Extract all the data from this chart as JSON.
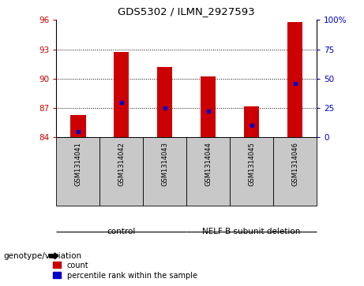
{
  "title": "GDS5302 / ILMN_2927593",
  "samples": [
    "GSM1314041",
    "GSM1314042",
    "GSM1314043",
    "GSM1314044",
    "GSM1314045",
    "GSM1314046"
  ],
  "count_values": [
    86.3,
    92.7,
    91.2,
    90.2,
    87.2,
    95.8
  ],
  "percentile_values": [
    5.0,
    30.0,
    25.0,
    22.0,
    10.0,
    46.0
  ],
  "ylim_left": [
    84,
    96
  ],
  "ylim_right": [
    0,
    100
  ],
  "yticks_left": [
    84,
    87,
    90,
    93,
    96
  ],
  "yticks_right": [
    0,
    25,
    50,
    75,
    100
  ],
  "bar_color": "#CC0000",
  "dot_color": "#0000CC",
  "bar_width": 0.35,
  "label_area_color": "#C8C8C8",
  "group_area_color": "#90EE90",
  "ylabel_left_color": "#CC0000",
  "ylabel_right_color": "#0000CC",
  "control_samples": [
    0,
    1,
    2
  ],
  "deletion_samples": [
    3,
    4,
    5
  ],
  "control_label": "control",
  "deletion_label": "NELF B subunit deletion",
  "legend_count": "count",
  "legend_pct": "percentile rank within the sample",
  "genotype_label": "genotype/variation"
}
